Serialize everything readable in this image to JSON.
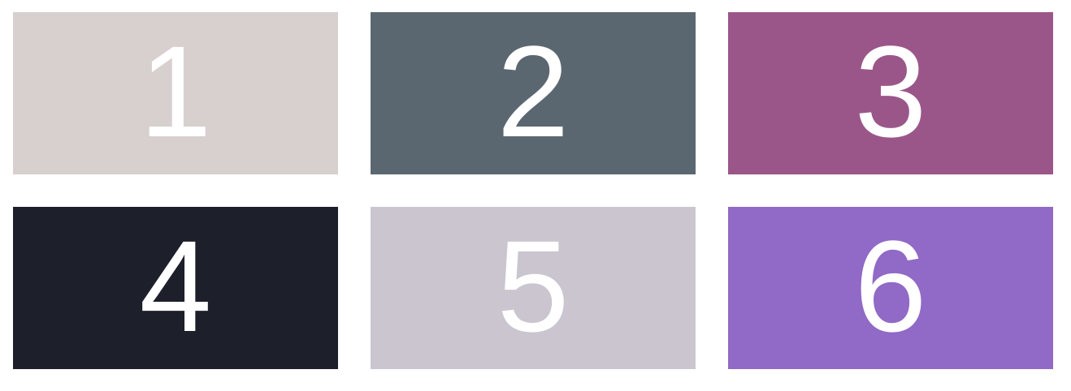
{
  "tiles": [
    {
      "label": "1",
      "color": "#d8cfcf"
    },
    {
      "label": "2",
      "color": "#5b6770"
    },
    {
      "label": "3",
      "color": "#9b5689"
    },
    {
      "label": "4",
      "color": "#1d1f2b"
    },
    {
      "label": "5",
      "color": "#cac5cf"
    },
    {
      "label": "6",
      "color": "#9169c6"
    }
  ]
}
